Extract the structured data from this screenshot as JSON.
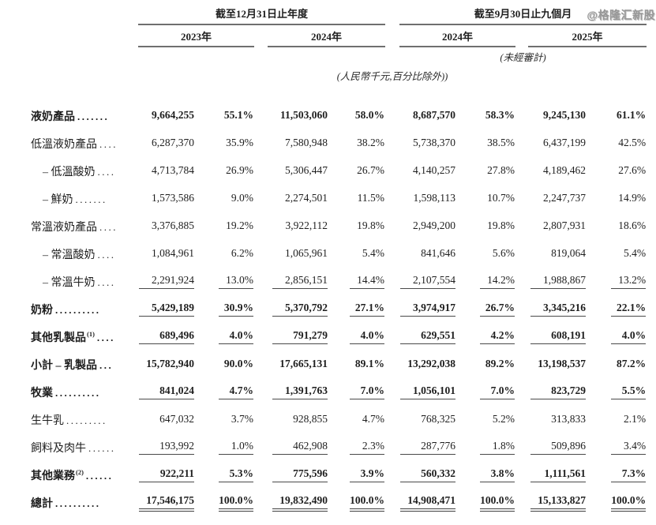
{
  "watermark": "@格隆汇新股",
  "header": {
    "group1": "截至12月31日止年度",
    "group2": "截至9月30日止九個月",
    "years": [
      "2023年",
      "2024年",
      "2024年",
      "2025年"
    ],
    "unaudited_note": "(未經審計)",
    "currency_note": "(人民幣千元,百分比除外))"
  },
  "table": {
    "rows": [
      {
        "label": "液奶產品",
        "sup": "",
        "dots": ".......",
        "bold": true,
        "indent": 0,
        "underline": "none",
        "values": [
          "9,664,255",
          "55.1%",
          "11,503,060",
          "58.0%",
          "8,687,570",
          "58.3%",
          "9,245,130",
          "61.1%"
        ]
      },
      {
        "label": "低溫液奶產品",
        "sup": "",
        "dots": "....",
        "bold": false,
        "indent": 0,
        "underline": "none",
        "values": [
          "6,287,370",
          "35.9%",
          "7,580,948",
          "38.2%",
          "5,738,370",
          "38.5%",
          "6,437,199",
          "42.5%"
        ]
      },
      {
        "label": "– 低溫酸奶",
        "sup": "",
        "dots": "....",
        "bold": false,
        "indent": 1,
        "underline": "none",
        "values": [
          "4,713,784",
          "26.9%",
          "5,306,447",
          "26.7%",
          "4,140,257",
          "27.8%",
          "4,189,462",
          "27.6%"
        ]
      },
      {
        "label": "– 鮮奶",
        "sup": "",
        "dots": ".......",
        "bold": false,
        "indent": 1,
        "underline": "none",
        "values": [
          "1,573,586",
          "9.0%",
          "2,274,501",
          "11.5%",
          "1,598,113",
          "10.7%",
          "2,247,737",
          "14.9%"
        ]
      },
      {
        "label": "常溫液奶產品",
        "sup": "",
        "dots": "....",
        "bold": false,
        "indent": 0,
        "underline": "none",
        "values": [
          "3,376,885",
          "19.2%",
          "3,922,112",
          "19.8%",
          "2,949,200",
          "19.8%",
          "2,807,931",
          "18.6%"
        ]
      },
      {
        "label": "– 常溫酸奶",
        "sup": "",
        "dots": "....",
        "bold": false,
        "indent": 1,
        "underline": "none",
        "values": [
          "1,084,961",
          "6.2%",
          "1,065,961",
          "5.4%",
          "841,646",
          "5.6%",
          "819,064",
          "5.4%"
        ]
      },
      {
        "label": "– 常溫牛奶",
        "sup": "",
        "dots": "....",
        "bold": false,
        "indent": 1,
        "underline": "single",
        "values": [
          "2,291,924",
          "13.0%",
          "2,856,151",
          "14.4%",
          "2,107,554",
          "14.2%",
          "1,988,867",
          "13.2%"
        ]
      },
      {
        "label": "奶粉",
        "sup": "",
        "dots": "..........",
        "bold": true,
        "indent": 0,
        "underline": "single",
        "values": [
          "5,429,189",
          "30.9%",
          "5,370,792",
          "27.1%",
          "3,974,917",
          "26.7%",
          "3,345,216",
          "22.1%"
        ]
      },
      {
        "label": "其他乳製品",
        "sup": "(1)",
        "dots": "....",
        "bold": true,
        "indent": 0,
        "underline": "single",
        "values": [
          "689,496",
          "4.0%",
          "791,279",
          "4.0%",
          "629,551",
          "4.2%",
          "608,191",
          "4.0%"
        ]
      },
      {
        "label": "小計 – 乳製品",
        "sup": "",
        "dots": "...",
        "bold": true,
        "indent": 0,
        "underline": "none",
        "values": [
          "15,782,940",
          "90.0%",
          "17,665,131",
          "89.1%",
          "13,292,038",
          "89.2%",
          "13,198,537",
          "87.2%"
        ]
      },
      {
        "label": "牧業",
        "sup": "",
        "dots": "..........",
        "bold": true,
        "indent": 0,
        "underline": "single",
        "values": [
          "841,024",
          "4.7%",
          "1,391,763",
          "7.0%",
          "1,056,101",
          "7.0%",
          "823,729",
          "5.5%"
        ]
      },
      {
        "label": "生牛乳",
        "sup": "",
        "dots": ".........",
        "bold": false,
        "indent": 0,
        "underline": "none",
        "values": [
          "647,032",
          "3.7%",
          "928,855",
          "4.7%",
          "768,325",
          "5.2%",
          "313,833",
          "2.1%"
        ]
      },
      {
        "label": "飼料及肉牛",
        "sup": "",
        "dots": "......",
        "bold": false,
        "indent": 0,
        "underline": "single",
        "values": [
          "193,992",
          "1.0%",
          "462,908",
          "2.3%",
          "287,776",
          "1.8%",
          "509,896",
          "3.4%"
        ]
      },
      {
        "label": "其他業務",
        "sup": "(2)",
        "dots": "......",
        "bold": true,
        "indent": 0,
        "underline": "single",
        "values": [
          "922,211",
          "5.3%",
          "775,596",
          "3.9%",
          "560,332",
          "3.8%",
          "1,111,561",
          "7.3%"
        ]
      },
      {
        "label": "總計",
        "sup": "",
        "dots": "..........",
        "bold": true,
        "indent": 0,
        "underline": "double",
        "values": [
          "17,546,175",
          "100.0%",
          "19,832,490",
          "100.0%",
          "14,908,471",
          "100.0%",
          "15,133,827",
          "100.0%"
        ]
      }
    ]
  }
}
